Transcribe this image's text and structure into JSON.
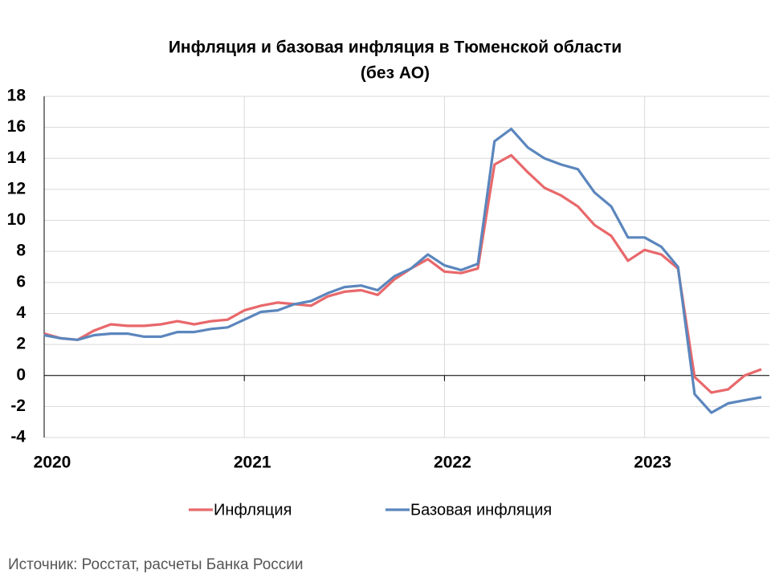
{
  "chart_data": {
    "type": "line",
    "title": [
      "Инфляция и базовая инфляция в Тюменской области",
      "(без АО)"
    ],
    "source": "Источник: Росстат, расчеты Банка России",
    "categories": [
      "2020",
      null,
      null,
      null,
      null,
      null,
      null,
      null,
      null,
      null,
      null,
      null,
      "2021",
      null,
      null,
      null,
      null,
      null,
      null,
      null,
      null,
      null,
      null,
      null,
      "2022",
      null,
      null,
      null,
      null,
      null,
      null,
      null,
      null,
      null,
      null,
      null,
      "2023",
      null,
      null,
      null,
      null,
      null,
      null,
      null
    ],
    "series": [
      {
        "name": "Инфляция",
        "color": "#e8686b",
        "values": [
          2.7,
          2.4,
          2.3,
          2.9,
          3.3,
          3.2,
          3.2,
          3.3,
          3.5,
          3.3,
          3.5,
          3.6,
          4.2,
          4.5,
          4.7,
          4.6,
          4.5,
          5.1,
          5.4,
          5.5,
          5.2,
          6.2,
          6.9,
          7.5,
          6.7,
          6.6,
          6.9,
          13.6,
          14.2,
          13.1,
          12.1,
          11.6,
          10.9,
          9.7,
          9.0,
          7.4,
          8.1,
          7.8,
          6.9,
          -0.1,
          -1.1,
          -0.9,
          0.0,
          0.4
        ]
      },
      {
        "name": "Базовая инфляция",
        "color": "#5b86bd",
        "values": [
          2.6,
          2.4,
          2.3,
          2.6,
          2.7,
          2.7,
          2.5,
          2.5,
          2.8,
          2.8,
          3.0,
          3.1,
          3.6,
          4.1,
          4.2,
          4.6,
          4.8,
          5.3,
          5.7,
          5.8,
          5.5,
          6.4,
          6.9,
          7.8,
          7.1,
          6.8,
          7.2,
          15.1,
          15.9,
          14.7,
          14.0,
          13.6,
          13.3,
          11.8,
          10.9,
          8.9,
          8.9,
          8.3,
          7.0,
          -1.2,
          -2.4,
          -1.8,
          -1.6,
          -1.4
        ]
      }
    ],
    "ylim": [
      -4,
      18
    ],
    "yticks": [
      -4,
      -2,
      0,
      2,
      4,
      6,
      8,
      10,
      12,
      14,
      16,
      18
    ],
    "grid": true,
    "legend": "bottom"
  }
}
